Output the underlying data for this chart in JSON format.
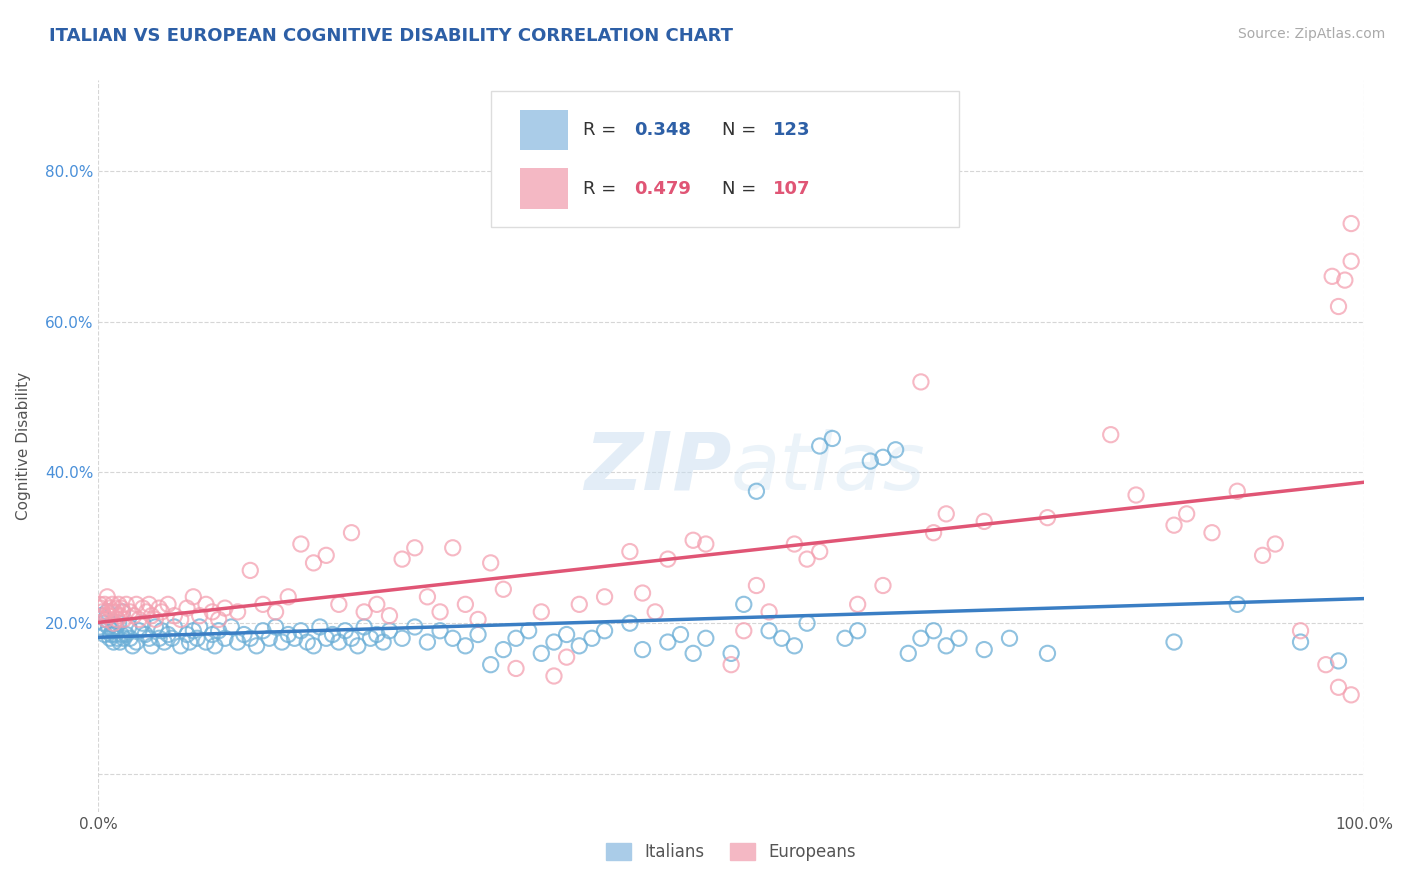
{
  "title": "ITALIAN VS EUROPEAN COGNITIVE DISABILITY CORRELATION CHART",
  "source": "Source: ZipAtlas.com",
  "ylabel": "Cognitive Disability",
  "xlim": [
    0.0,
    1.0
  ],
  "ylim": [
    -0.05,
    0.92
  ],
  "x_ticks": [
    0.0,
    1.0
  ],
  "x_tick_labels": [
    "0.0%",
    "100.0%"
  ],
  "y_ticks": [
    0.0,
    0.2,
    0.4,
    0.6,
    0.8
  ],
  "y_tick_labels": [
    "",
    "20.0%",
    "40.0%",
    "60.0%",
    "80.0%"
  ],
  "italian_color": "#6baed6",
  "european_color": "#f4a0b0",
  "italian_R": 0.348,
  "italian_N": 123,
  "european_R": 0.479,
  "european_N": 107,
  "italian_line_color": "#3a7ec4",
  "european_line_color": "#e05575",
  "watermark": "ZIPatlas",
  "background_color": "#ffffff",
  "grid_color": "#cccccc",
  "legend_italian_color": "#aacce8",
  "legend_european_color": "#f4b8c4",
  "title_color": "#2d5fa6",
  "stat_color": "#2d5fa6",
  "italian_points": [
    [
      0.001,
      0.195
    ],
    [
      0.002,
      0.21
    ],
    [
      0.003,
      0.19
    ],
    [
      0.004,
      0.2
    ],
    [
      0.005,
      0.185
    ],
    [
      0.006,
      0.205
    ],
    [
      0.007,
      0.215
    ],
    [
      0.008,
      0.195
    ],
    [
      0.009,
      0.18
    ],
    [
      0.01,
      0.185
    ],
    [
      0.011,
      0.19
    ],
    [
      0.012,
      0.175
    ],
    [
      0.013,
      0.185
    ],
    [
      0.014,
      0.195
    ],
    [
      0.015,
      0.18
    ],
    [
      0.016,
      0.2
    ],
    [
      0.017,
      0.175
    ],
    [
      0.018,
      0.185
    ],
    [
      0.019,
      0.215
    ],
    [
      0.02,
      0.18
    ],
    [
      0.022,
      0.185
    ],
    [
      0.024,
      0.195
    ],
    [
      0.025,
      0.18
    ],
    [
      0.027,
      0.17
    ],
    [
      0.03,
      0.175
    ],
    [
      0.032,
      0.19
    ],
    [
      0.035,
      0.2
    ],
    [
      0.037,
      0.185
    ],
    [
      0.04,
      0.18
    ],
    [
      0.042,
      0.17
    ],
    [
      0.045,
      0.195
    ],
    [
      0.048,
      0.18
    ],
    [
      0.05,
      0.19
    ],
    [
      0.052,
      0.175
    ],
    [
      0.055,
      0.185
    ],
    [
      0.058,
      0.18
    ],
    [
      0.06,
      0.195
    ],
    [
      0.065,
      0.17
    ],
    [
      0.07,
      0.185
    ],
    [
      0.072,
      0.175
    ],
    [
      0.075,
      0.19
    ],
    [
      0.078,
      0.18
    ],
    [
      0.08,
      0.195
    ],
    [
      0.085,
      0.175
    ],
    [
      0.09,
      0.185
    ],
    [
      0.092,
      0.17
    ],
    [
      0.095,
      0.19
    ],
    [
      0.1,
      0.18
    ],
    [
      0.105,
      0.195
    ],
    [
      0.11,
      0.175
    ],
    [
      0.115,
      0.185
    ],
    [
      0.12,
      0.18
    ],
    [
      0.125,
      0.17
    ],
    [
      0.13,
      0.19
    ],
    [
      0.135,
      0.18
    ],
    [
      0.14,
      0.195
    ],
    [
      0.145,
      0.175
    ],
    [
      0.15,
      0.185
    ],
    [
      0.155,
      0.18
    ],
    [
      0.16,
      0.19
    ],
    [
      0.165,
      0.175
    ],
    [
      0.17,
      0.17
    ],
    [
      0.175,
      0.195
    ],
    [
      0.18,
      0.18
    ],
    [
      0.185,
      0.185
    ],
    [
      0.19,
      0.175
    ],
    [
      0.195,
      0.19
    ],
    [
      0.2,
      0.18
    ],
    [
      0.205,
      0.17
    ],
    [
      0.21,
      0.195
    ],
    [
      0.215,
      0.18
    ],
    [
      0.22,
      0.185
    ],
    [
      0.225,
      0.175
    ],
    [
      0.23,
      0.19
    ],
    [
      0.24,
      0.18
    ],
    [
      0.25,
      0.195
    ],
    [
      0.26,
      0.175
    ],
    [
      0.27,
      0.19
    ],
    [
      0.28,
      0.18
    ],
    [
      0.29,
      0.17
    ],
    [
      0.3,
      0.185
    ],
    [
      0.31,
      0.145
    ],
    [
      0.32,
      0.165
    ],
    [
      0.33,
      0.18
    ],
    [
      0.34,
      0.19
    ],
    [
      0.35,
      0.16
    ],
    [
      0.36,
      0.175
    ],
    [
      0.37,
      0.185
    ],
    [
      0.38,
      0.17
    ],
    [
      0.39,
      0.18
    ],
    [
      0.4,
      0.19
    ],
    [
      0.42,
      0.2
    ],
    [
      0.43,
      0.165
    ],
    [
      0.45,
      0.175
    ],
    [
      0.46,
      0.185
    ],
    [
      0.47,
      0.16
    ],
    [
      0.48,
      0.18
    ],
    [
      0.5,
      0.16
    ],
    [
      0.51,
      0.225
    ],
    [
      0.52,
      0.375
    ],
    [
      0.53,
      0.19
    ],
    [
      0.54,
      0.18
    ],
    [
      0.55,
      0.17
    ],
    [
      0.56,
      0.2
    ],
    [
      0.57,
      0.435
    ],
    [
      0.58,
      0.445
    ],
    [
      0.59,
      0.18
    ],
    [
      0.6,
      0.19
    ],
    [
      0.61,
      0.415
    ],
    [
      0.62,
      0.42
    ],
    [
      0.63,
      0.43
    ],
    [
      0.64,
      0.16
    ],
    [
      0.65,
      0.18
    ],
    [
      0.66,
      0.19
    ],
    [
      0.67,
      0.17
    ],
    [
      0.68,
      0.18
    ],
    [
      0.7,
      0.165
    ],
    [
      0.72,
      0.18
    ],
    [
      0.75,
      0.16
    ],
    [
      0.85,
      0.175
    ],
    [
      0.9,
      0.225
    ],
    [
      0.95,
      0.175
    ],
    [
      0.98,
      0.15
    ]
  ],
  "european_points": [
    [
      0.001,
      0.225
    ],
    [
      0.002,
      0.22
    ],
    [
      0.003,
      0.215
    ],
    [
      0.004,
      0.21
    ],
    [
      0.005,
      0.225
    ],
    [
      0.006,
      0.205
    ],
    [
      0.007,
      0.235
    ],
    [
      0.008,
      0.21
    ],
    [
      0.009,
      0.22
    ],
    [
      0.01,
      0.215
    ],
    [
      0.011,
      0.225
    ],
    [
      0.012,
      0.2
    ],
    [
      0.013,
      0.215
    ],
    [
      0.014,
      0.22
    ],
    [
      0.015,
      0.205
    ],
    [
      0.016,
      0.225
    ],
    [
      0.017,
      0.21
    ],
    [
      0.018,
      0.22
    ],
    [
      0.019,
      0.215
    ],
    [
      0.02,
      0.205
    ],
    [
      0.022,
      0.225
    ],
    [
      0.025,
      0.215
    ],
    [
      0.028,
      0.21
    ],
    [
      0.03,
      0.225
    ],
    [
      0.032,
      0.205
    ],
    [
      0.035,
      0.22
    ],
    [
      0.038,
      0.215
    ],
    [
      0.04,
      0.225
    ],
    [
      0.042,
      0.21
    ],
    [
      0.045,
      0.205
    ],
    [
      0.048,
      0.22
    ],
    [
      0.05,
      0.215
    ],
    [
      0.055,
      0.225
    ],
    [
      0.06,
      0.21
    ],
    [
      0.065,
      0.205
    ],
    [
      0.07,
      0.22
    ],
    [
      0.075,
      0.235
    ],
    [
      0.08,
      0.21
    ],
    [
      0.085,
      0.225
    ],
    [
      0.09,
      0.215
    ],
    [
      0.095,
      0.205
    ],
    [
      0.1,
      0.22
    ],
    [
      0.11,
      0.215
    ],
    [
      0.12,
      0.27
    ],
    [
      0.13,
      0.225
    ],
    [
      0.14,
      0.215
    ],
    [
      0.15,
      0.235
    ],
    [
      0.16,
      0.305
    ],
    [
      0.17,
      0.28
    ],
    [
      0.18,
      0.29
    ],
    [
      0.19,
      0.225
    ],
    [
      0.2,
      0.32
    ],
    [
      0.21,
      0.215
    ],
    [
      0.22,
      0.225
    ],
    [
      0.23,
      0.21
    ],
    [
      0.24,
      0.285
    ],
    [
      0.25,
      0.3
    ],
    [
      0.26,
      0.235
    ],
    [
      0.27,
      0.215
    ],
    [
      0.28,
      0.3
    ],
    [
      0.29,
      0.225
    ],
    [
      0.3,
      0.205
    ],
    [
      0.31,
      0.28
    ],
    [
      0.32,
      0.245
    ],
    [
      0.33,
      0.14
    ],
    [
      0.35,
      0.215
    ],
    [
      0.36,
      0.13
    ],
    [
      0.37,
      0.155
    ],
    [
      0.38,
      0.225
    ],
    [
      0.4,
      0.235
    ],
    [
      0.42,
      0.295
    ],
    [
      0.43,
      0.24
    ],
    [
      0.44,
      0.215
    ],
    [
      0.45,
      0.285
    ],
    [
      0.47,
      0.31
    ],
    [
      0.48,
      0.305
    ],
    [
      0.5,
      0.145
    ],
    [
      0.51,
      0.19
    ],
    [
      0.52,
      0.25
    ],
    [
      0.53,
      0.215
    ],
    [
      0.55,
      0.305
    ],
    [
      0.56,
      0.285
    ],
    [
      0.57,
      0.295
    ],
    [
      0.6,
      0.225
    ],
    [
      0.62,
      0.25
    ],
    [
      0.65,
      0.52
    ],
    [
      0.66,
      0.32
    ],
    [
      0.67,
      0.345
    ],
    [
      0.7,
      0.335
    ],
    [
      0.75,
      0.34
    ],
    [
      0.8,
      0.45
    ],
    [
      0.82,
      0.37
    ],
    [
      0.85,
      0.33
    ],
    [
      0.86,
      0.345
    ],
    [
      0.88,
      0.32
    ],
    [
      0.9,
      0.375
    ],
    [
      0.92,
      0.29
    ],
    [
      0.93,
      0.305
    ],
    [
      0.95,
      0.19
    ],
    [
      0.97,
      0.145
    ],
    [
      0.975,
      0.66
    ],
    [
      0.98,
      0.115
    ],
    [
      0.98,
      0.62
    ],
    [
      0.985,
      0.655
    ],
    [
      0.99,
      0.105
    ],
    [
      0.99,
      0.68
    ],
    [
      0.99,
      0.73
    ]
  ]
}
